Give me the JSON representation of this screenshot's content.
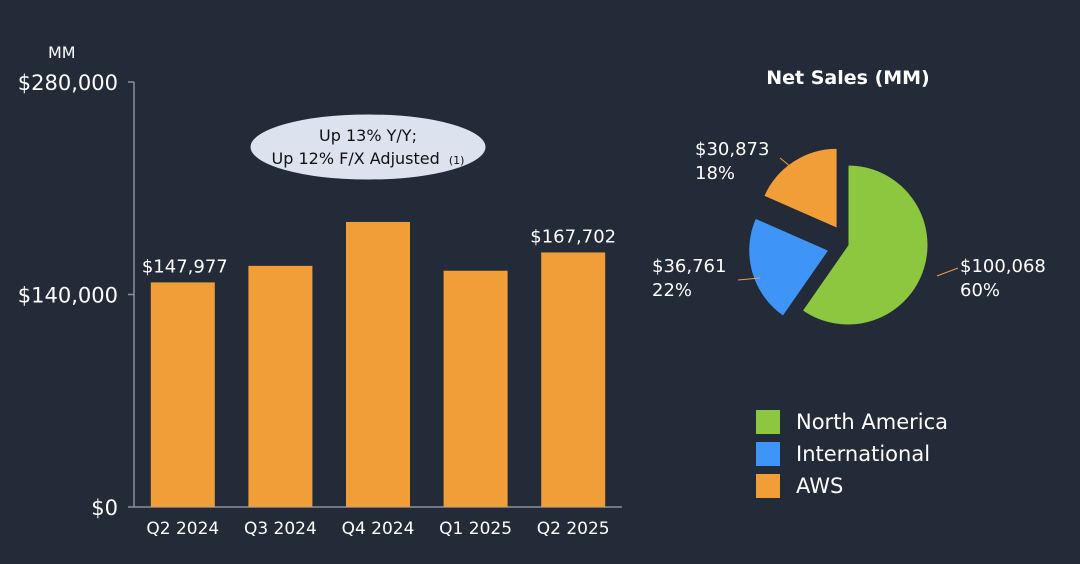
{
  "chart_data": [
    {
      "type": "bar",
      "unit_label": "MM",
      "categories": [
        "Q2 2024",
        "Q3 2024",
        "Q4 2024",
        "Q1 2025",
        "Q2 2025"
      ],
      "values": [
        147977,
        158877,
        187792,
        155667,
        167702
      ],
      "data_labels": [
        "$147,977",
        "",
        "",
        "",
        "$167,702"
      ],
      "ylim": [
        0,
        280000
      ],
      "yticks": [
        0,
        140000,
        280000
      ],
      "ytick_labels": [
        "$0",
        "$140,000",
        "$280,000"
      ],
      "bar_color": "#f29e38",
      "callout": {
        "line1": "Up 13% Y/Y;",
        "line2": "Up 12% F/X Adjusted",
        "footnote": "(1)"
      },
      "grid": false
    },
    {
      "type": "pie",
      "title": "Net Sales (MM)",
      "slices": [
        {
          "name": "North America",
          "value": 100068,
          "label": "$100,068",
          "percent_label": "60%",
          "color": "#8dc63f"
        },
        {
          "name": "International",
          "value": 36761,
          "label": "$36,761",
          "percent_label": "22%",
          "color": "#3e95f7"
        },
        {
          "name": "AWS",
          "value": 30873,
          "label": "$30,873",
          "percent_label": "18%",
          "color": "#f29e38"
        }
      ],
      "legend_position": "bottom-right"
    }
  ],
  "colors": {
    "background": "#232a38",
    "axis": "#8a909c",
    "callout_fill": "#dce3ef",
    "leader_line": "#f29e38"
  }
}
